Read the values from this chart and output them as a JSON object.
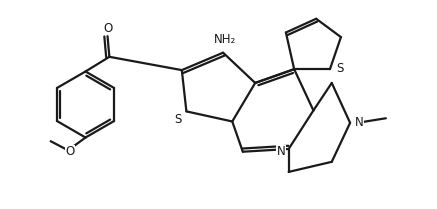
{
  "bg_color": "#ffffff",
  "line_color": "#1a1a1a",
  "line_width": 1.6,
  "font_size": 8.5,
  "figsize": [
    4.37,
    2.09
  ],
  "dpi": 100,
  "xlim": [
    0.0,
    9.5
  ],
  "ylim": [
    0.0,
    4.5
  ]
}
